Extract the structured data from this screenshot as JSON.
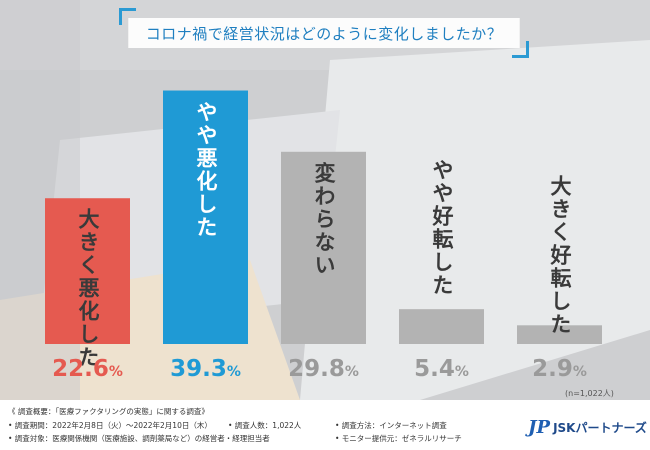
{
  "chart_data": {
    "type": "bar",
    "title": "コロナ禍で経営状況はどのように変化しましたか？",
    "categories": [
      "大きく悪化した",
      "やや悪化した",
      "変わらない",
      "やや好転した",
      "大きく好転した"
    ],
    "values": [
      22.6,
      39.3,
      29.8,
      5.4,
      2.9
    ],
    "value_labels": [
      "22.6%",
      "39.3%",
      "29.8%",
      "5.4%",
      "2.9%"
    ],
    "unit": "%",
    "ylim": [
      0,
      40
    ],
    "note": "(n=1,022人)",
    "colors": [
      "#e55a50",
      "#1f9ad5",
      "#b3b3b3",
      "#b3b3b3",
      "#b3b3b3"
    ],
    "label_colors": [
      "#3a3a3a",
      "#ffffff",
      "#3a3a3a",
      "#3a3a3a",
      "#3a3a3a"
    ],
    "value_colors": [
      "#e55a50",
      "#1f9ad5",
      "#9a9a9a",
      "#9a9a9a",
      "#9a9a9a"
    ]
  },
  "footer": {
    "overview": "《 調査概要：「医療ファクタリングの実態」に関する調査》",
    "period": "• 調査期間：2022年2月8日（火）～2022年2月10日（木）",
    "count": "• 調査人数：1,022人",
    "method": "• 調査方法：インターネット調査",
    "target": "• 調査対象：医療関係機関（医療施設、調剤薬局など）の経営者・経理担当者",
    "provider": "• モニター提供元：ゼネラルリサーチ"
  },
  "brand": {
    "mark": "JP",
    "name": "JSKパートナーズ"
  }
}
